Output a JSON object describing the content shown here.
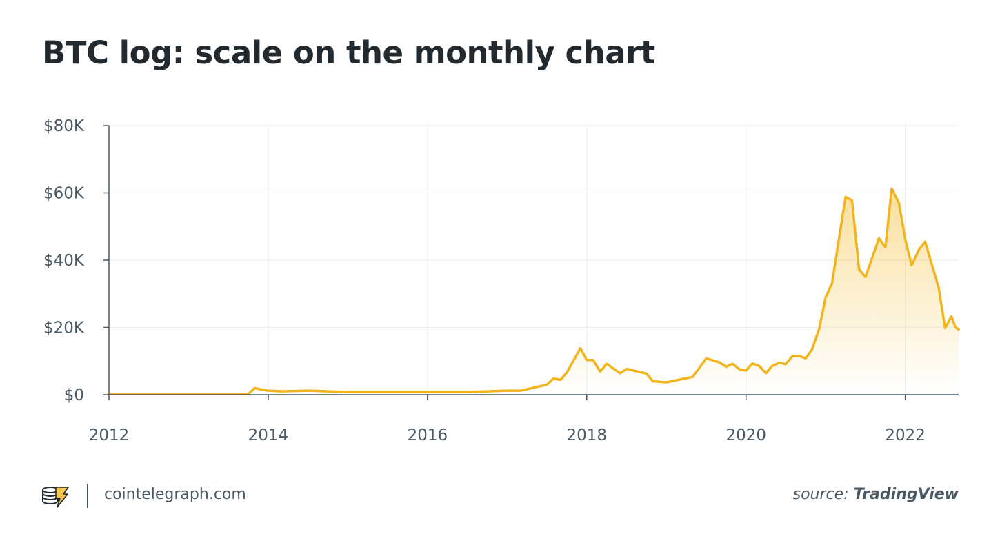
{
  "title": "BTC log: scale on the monthly chart",
  "footer": {
    "site": "cointelegraph.com",
    "source_prefix": "source:",
    "source_name": "TradingView",
    "logo_icon": "cointelegraph-logo-icon"
  },
  "colors": {
    "line": "#f2b41c",
    "fill_top": "#f6c64f",
    "text": "#222a30",
    "axis_text": "#4a5963",
    "grid": "#e9ecee"
  },
  "chart_data": {
    "type": "area",
    "title": "BTC log: scale on the monthly chart",
    "xlabel": "",
    "ylabel": "",
    "xlim": [
      2012.0,
      2022.67
    ],
    "ylim": [
      0,
      80000
    ],
    "grid": true,
    "x_ticks": [
      2012,
      2014,
      2016,
      2018,
      2020,
      2022
    ],
    "x_tick_labels": [
      "2012",
      "2014",
      "2016",
      "2018",
      "2020",
      "2022"
    ],
    "y_ticks": [
      0,
      20000,
      40000,
      60000,
      80000
    ],
    "y_tick_labels": [
      "$0",
      "$20K",
      "$40K",
      "$60K",
      "$80K"
    ],
    "series": [
      {
        "points": [
          [
            2012.0,
            200
          ],
          [
            2012.5,
            200
          ],
          [
            2013.0,
            200
          ],
          [
            2013.5,
            200
          ],
          [
            2013.75,
            200
          ],
          [
            2013.83,
            2000
          ],
          [
            2013.92,
            1500
          ],
          [
            2014.0,
            1200
          ],
          [
            2014.17,
            1000
          ],
          [
            2014.5,
            1200
          ],
          [
            2015.0,
            800
          ],
          [
            2015.5,
            800
          ],
          [
            2016.0,
            800
          ],
          [
            2016.5,
            800
          ],
          [
            2017.0,
            1200
          ],
          [
            2017.17,
            1200
          ],
          [
            2017.5,
            3000
          ],
          [
            2017.58,
            4800
          ],
          [
            2017.67,
            4400
          ],
          [
            2017.75,
            6600
          ],
          [
            2017.92,
            13800
          ],
          [
            2018.0,
            10300
          ],
          [
            2018.08,
            10300
          ],
          [
            2018.17,
            6900
          ],
          [
            2018.25,
            9200
          ],
          [
            2018.42,
            6400
          ],
          [
            2018.5,
            7700
          ],
          [
            2018.75,
            6300
          ],
          [
            2018.83,
            4000
          ],
          [
            2019.0,
            3700
          ],
          [
            2019.33,
            5300
          ],
          [
            2019.5,
            10800
          ],
          [
            2019.67,
            9600
          ],
          [
            2019.75,
            8300
          ],
          [
            2019.83,
            9200
          ],
          [
            2019.92,
            7500
          ],
          [
            2020.0,
            7200
          ],
          [
            2020.08,
            9300
          ],
          [
            2020.17,
            8500
          ],
          [
            2020.25,
            6400
          ],
          [
            2020.33,
            8600
          ],
          [
            2020.42,
            9500
          ],
          [
            2020.5,
            9100
          ],
          [
            2020.58,
            11400
          ],
          [
            2020.67,
            11500
          ],
          [
            2020.75,
            10800
          ],
          [
            2020.83,
            13500
          ],
          [
            2020.92,
            19700
          ],
          [
            2021.0,
            29000
          ],
          [
            2021.08,
            33100
          ],
          [
            2021.25,
            58800
          ],
          [
            2021.33,
            57800
          ],
          [
            2021.42,
            37300
          ],
          [
            2021.5,
            35000
          ],
          [
            2021.67,
            46500
          ],
          [
            2021.75,
            43800
          ],
          [
            2021.83,
            61300
          ],
          [
            2021.92,
            57000
          ],
          [
            2022.0,
            46200
          ],
          [
            2022.08,
            38500
          ],
          [
            2022.17,
            43100
          ],
          [
            2022.25,
            45500
          ],
          [
            2022.42,
            31800
          ],
          [
            2022.5,
            19800
          ],
          [
            2022.58,
            23300
          ],
          [
            2022.63,
            20000
          ],
          [
            2022.67,
            19400
          ]
        ]
      }
    ]
  }
}
